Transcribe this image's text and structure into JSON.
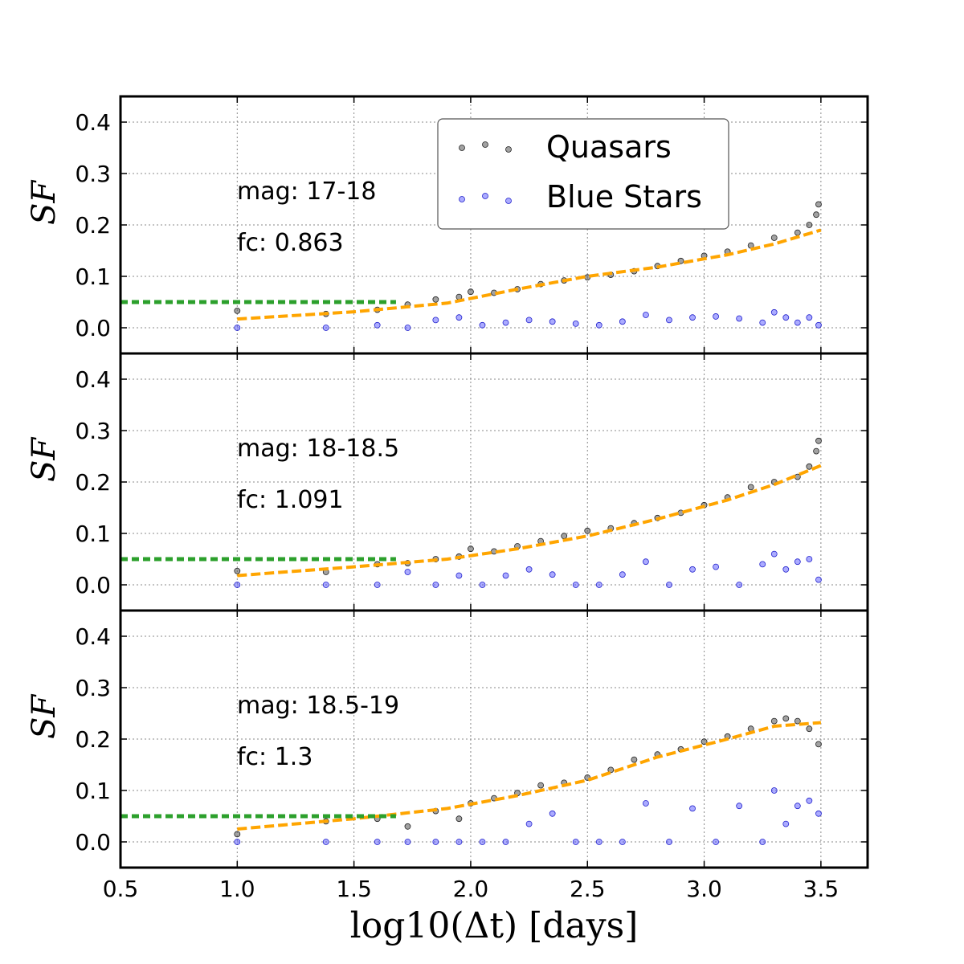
{
  "chart_data": {
    "type": "scatter",
    "xlabel": "log10(Δt) [days]",
    "ylabel": "SF",
    "xlim": [
      0.5,
      3.7
    ],
    "ylim": [
      -0.05,
      0.45
    ],
    "x_ticks": [
      "0.5",
      "1.0",
      "1.5",
      "2.0",
      "2.5",
      "3.0",
      "3.5"
    ],
    "y_ticks": [
      "0.0",
      "0.1",
      "0.2",
      "0.3",
      "0.4"
    ],
    "grid": true,
    "legend": {
      "placement": "top-center",
      "entries": [
        {
          "name": "Quasars",
          "color": "#555555"
        },
        {
          "name": "Blue Stars",
          "color": "#4444ff"
        }
      ]
    },
    "colors": {
      "quasars": "#555555",
      "blue_stars": "#4444ff",
      "fit": "#ffa500",
      "noise_floor": "#2ca02c"
    },
    "panels": [
      {
        "mag": "mag: 17-18",
        "fc": "fc: 0.863",
        "noise_floor": {
          "x": [
            1.0,
            1.68
          ],
          "y": 0.05
        },
        "quasars": {
          "x": [
            1.0,
            1.38,
            1.6,
            1.73,
            1.85,
            1.95,
            2.0,
            2.1,
            2.2,
            2.3,
            2.4,
            2.5,
            2.6,
            2.7,
            2.8,
            2.9,
            3.0,
            3.1,
            3.2,
            3.3,
            3.4,
            3.45,
            3.48,
            3.49
          ],
          "y": [
            0.033,
            0.027,
            0.035,
            0.045,
            0.055,
            0.06,
            0.07,
            0.068,
            0.075,
            0.085,
            0.092,
            0.098,
            0.103,
            0.11,
            0.12,
            0.13,
            0.14,
            0.148,
            0.16,
            0.175,
            0.185,
            0.2,
            0.22,
            0.24
          ]
        },
        "blue_stars": {
          "x": [
            1.0,
            1.38,
            1.6,
            1.73,
            1.85,
            1.95,
            2.05,
            2.15,
            2.25,
            2.35,
            2.45,
            2.55,
            2.65,
            2.75,
            2.85,
            2.95,
            3.05,
            3.15,
            3.25,
            3.3,
            3.35,
            3.4,
            3.45,
            3.49
          ],
          "y": [
            0.0,
            0.0,
            0.005,
            0.0,
            0.015,
            0.02,
            0.005,
            0.01,
            0.015,
            0.012,
            0.008,
            0.005,
            0.012,
            0.025,
            0.015,
            0.02,
            0.022,
            0.018,
            0.01,
            0.03,
            0.02,
            0.01,
            0.02,
            0.005
          ]
        },
        "fit": {
          "x": [
            1.0,
            1.5,
            1.9,
            2.2,
            2.5,
            2.8,
            3.1,
            3.3,
            3.5
          ],
          "y": [
            0.017,
            0.031,
            0.048,
            0.075,
            0.1,
            0.118,
            0.142,
            0.163,
            0.19
          ]
        }
      },
      {
        "mag": "mag: 18-18.5",
        "fc": "fc: 1.091",
        "noise_floor": {
          "x": [
            1.0,
            1.68
          ],
          "y": 0.05
        },
        "quasars": {
          "x": [
            1.0,
            1.38,
            1.6,
            1.73,
            1.85,
            1.95,
            2.0,
            2.1,
            2.2,
            2.3,
            2.4,
            2.5,
            2.6,
            2.7,
            2.8,
            2.9,
            3.0,
            3.1,
            3.2,
            3.3,
            3.4,
            3.45,
            3.48,
            3.49
          ],
          "y": [
            0.027,
            0.025,
            0.04,
            0.042,
            0.05,
            0.055,
            0.07,
            0.065,
            0.075,
            0.085,
            0.095,
            0.105,
            0.11,
            0.12,
            0.13,
            0.14,
            0.155,
            0.17,
            0.19,
            0.2,
            0.21,
            0.23,
            0.26,
            0.28
          ]
        },
        "blue_stars": {
          "x": [
            1.0,
            1.38,
            1.6,
            1.73,
            1.85,
            1.95,
            2.05,
            2.15,
            2.25,
            2.35,
            2.45,
            2.55,
            2.65,
            2.75,
            2.85,
            2.95,
            3.05,
            3.15,
            3.25,
            3.3,
            3.35,
            3.4,
            3.45,
            3.49
          ],
          "y": [
            0.0,
            0.0,
            0.0,
            0.025,
            0.0,
            0.018,
            0.0,
            0.018,
            0.03,
            0.02,
            0.0,
            0.0,
            0.02,
            0.045,
            0.0,
            0.03,
            0.035,
            0.0,
            0.04,
            0.06,
            0.03,
            0.045,
            0.05,
            0.01
          ]
        },
        "fit": {
          "x": [
            1.0,
            1.5,
            1.9,
            2.2,
            2.5,
            2.8,
            3.1,
            3.3,
            3.5
          ],
          "y": [
            0.018,
            0.035,
            0.05,
            0.07,
            0.095,
            0.128,
            0.165,
            0.195,
            0.232
          ]
        }
      },
      {
        "mag": "mag: 18.5-19",
        "fc": "fc: 1.3",
        "noise_floor": {
          "x": [
            1.0,
            1.68
          ],
          "y": 0.05
        },
        "quasars": {
          "x": [
            1.0,
            1.38,
            1.6,
            1.73,
            1.85,
            1.95,
            2.0,
            2.1,
            2.2,
            2.3,
            2.4,
            2.5,
            2.6,
            2.7,
            2.8,
            2.9,
            3.0,
            3.1,
            3.2,
            3.3,
            3.35,
            3.4,
            3.45,
            3.49
          ],
          "y": [
            0.015,
            0.04,
            0.045,
            0.03,
            0.06,
            0.045,
            0.075,
            0.085,
            0.095,
            0.11,
            0.115,
            0.125,
            0.14,
            0.16,
            0.17,
            0.18,
            0.195,
            0.205,
            0.22,
            0.235,
            0.24,
            0.235,
            0.22,
            0.19
          ]
        },
        "blue_stars": {
          "x": [
            1.0,
            1.38,
            1.6,
            1.73,
            1.85,
            1.95,
            2.05,
            2.15,
            2.25,
            2.35,
            2.45,
            2.55,
            2.65,
            2.75,
            2.85,
            2.95,
            3.05,
            3.15,
            3.25,
            3.3,
            3.35,
            3.4,
            3.45,
            3.49
          ],
          "y": [
            0.0,
            0.0,
            0.0,
            0.0,
            0.0,
            0.0,
            0.0,
            0.0,
            0.035,
            0.055,
            0.0,
            0.0,
            0.0,
            0.075,
            0.0,
            0.065,
            0.0,
            0.07,
            0.0,
            0.1,
            0.035,
            0.07,
            0.08,
            0.055
          ]
        },
        "fit": {
          "x": [
            1.0,
            1.5,
            1.9,
            2.2,
            2.5,
            2.8,
            3.1,
            3.3,
            3.5
          ],
          "y": [
            0.025,
            0.045,
            0.065,
            0.09,
            0.12,
            0.165,
            0.2,
            0.225,
            0.232
          ]
        }
      }
    ]
  }
}
